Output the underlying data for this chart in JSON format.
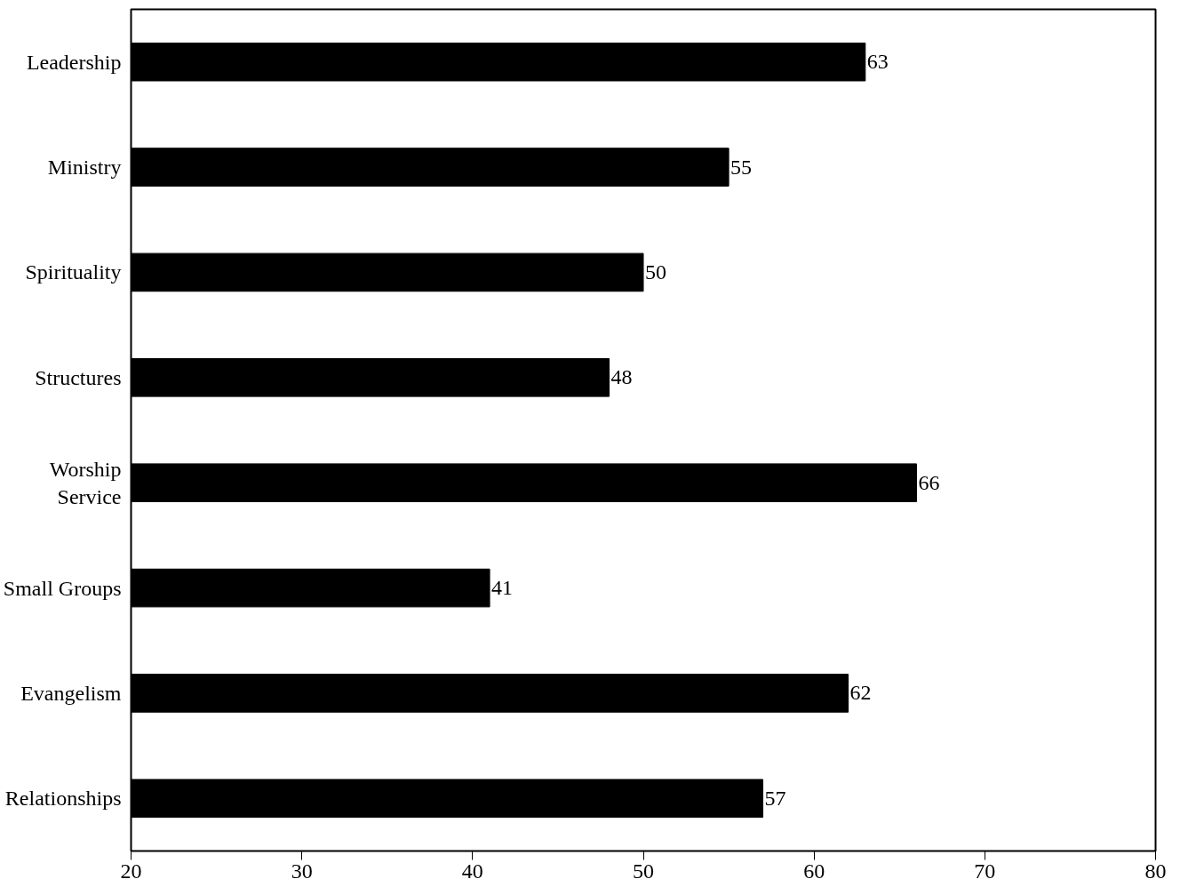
{
  "chart_data": {
    "type": "bar",
    "orientation": "horizontal",
    "categories": [
      "Leadership",
      "Ministry",
      "Spirituality",
      "Structures",
      "Worship\nService",
      "Small Groups",
      "Evangelism",
      "Relationships"
    ],
    "values": [
      63,
      55,
      50,
      48,
      66,
      41,
      62,
      57
    ],
    "color": "#000000",
    "xlim": [
      20,
      80
    ],
    "xticks": [
      20,
      30,
      40,
      50,
      60,
      70,
      80
    ],
    "data_labels": true,
    "grid": false
  }
}
